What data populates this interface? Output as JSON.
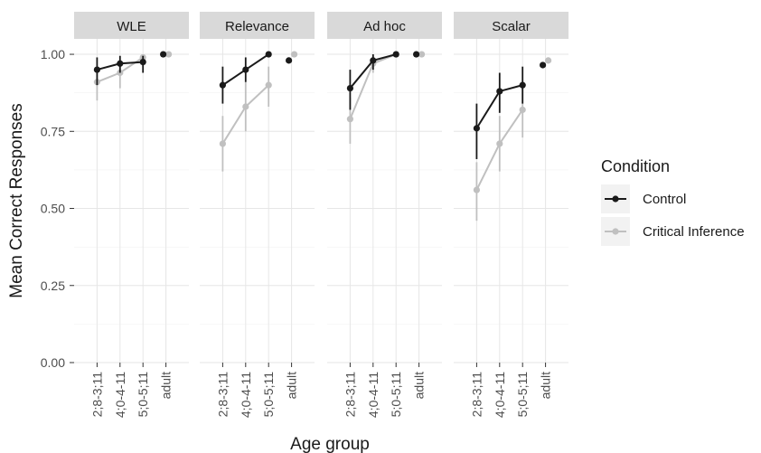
{
  "chart_data": {
    "type": "line",
    "facet_label": "panel",
    "panels": [
      "WLE",
      "Relevance",
      "Ad hoc",
      "Scalar"
    ],
    "categories": [
      "2;8-3;11",
      "4;0-4-11",
      "5;0-5;11",
      "adult"
    ],
    "xlabel": "Age group",
    "ylabel": "Mean Correct Responses",
    "ylim": [
      0,
      1.05
    ],
    "yticks": [
      "0.00",
      "0.25",
      "0.50",
      "0.75",
      "1.00"
    ],
    "ytick_values": [
      0,
      0.25,
      0.5,
      0.75,
      1.0
    ],
    "grid": true,
    "legend": {
      "title": "Condition",
      "position": "right"
    },
    "series": [
      {
        "name": "Control",
        "color": "#1a1a1a",
        "panels": {
          "WLE": {
            "values": [
              0.95,
              0.97,
              0.975,
              1.0
            ],
            "ci_low": [
              0.9,
              0.94,
              0.94,
              null
            ],
            "ci_high": [
              0.99,
              0.995,
              0.995,
              null
            ]
          },
          "Relevance": {
            "values": [
              0.9,
              0.95,
              1.0,
              0.98
            ],
            "ci_low": [
              0.84,
              0.91,
              null,
              null
            ],
            "ci_high": [
              0.96,
              0.99,
              null,
              null
            ]
          },
          "Ad hoc": {
            "values": [
              0.89,
              0.98,
              1.0,
              1.0
            ],
            "ci_low": [
              0.82,
              0.95,
              null,
              null
            ],
            "ci_high": [
              0.95,
              1.0,
              null,
              null
            ]
          },
          "Scalar": {
            "values": [
              0.76,
              0.88,
              0.9,
              0.965
            ],
            "ci_low": [
              0.66,
              0.81,
              0.84,
              null
            ],
            "ci_high": [
              0.84,
              0.94,
              0.96,
              null
            ]
          }
        }
      },
      {
        "name": "Critical Inference",
        "color": "#c0c0c0",
        "panels": {
          "WLE": {
            "values": [
              0.91,
              0.94,
              0.99,
              1.0
            ],
            "ci_low": [
              0.85,
              0.89,
              0.96,
              null
            ],
            "ci_high": [
              0.96,
              0.98,
              1.0,
              null
            ]
          },
          "Relevance": {
            "values": [
              0.71,
              0.83,
              0.9,
              1.0
            ],
            "ci_low": [
              0.62,
              0.75,
              0.83,
              null
            ],
            "ci_high": [
              0.8,
              0.91,
              0.96,
              null
            ]
          },
          "Ad hoc": {
            "values": [
              0.79,
              0.97,
              1.0,
              1.0
            ],
            "ci_low": [
              0.71,
              0.94,
              null,
              null
            ],
            "ci_high": [
              0.86,
              0.995,
              null,
              null
            ]
          },
          "Scalar": {
            "values": [
              0.56,
              0.71,
              0.82,
              0.98
            ],
            "ci_low": [
              0.46,
              0.62,
              0.73,
              null
            ],
            "ci_high": [
              0.65,
              0.8,
              0.9,
              null
            ]
          }
        }
      }
    ]
  }
}
